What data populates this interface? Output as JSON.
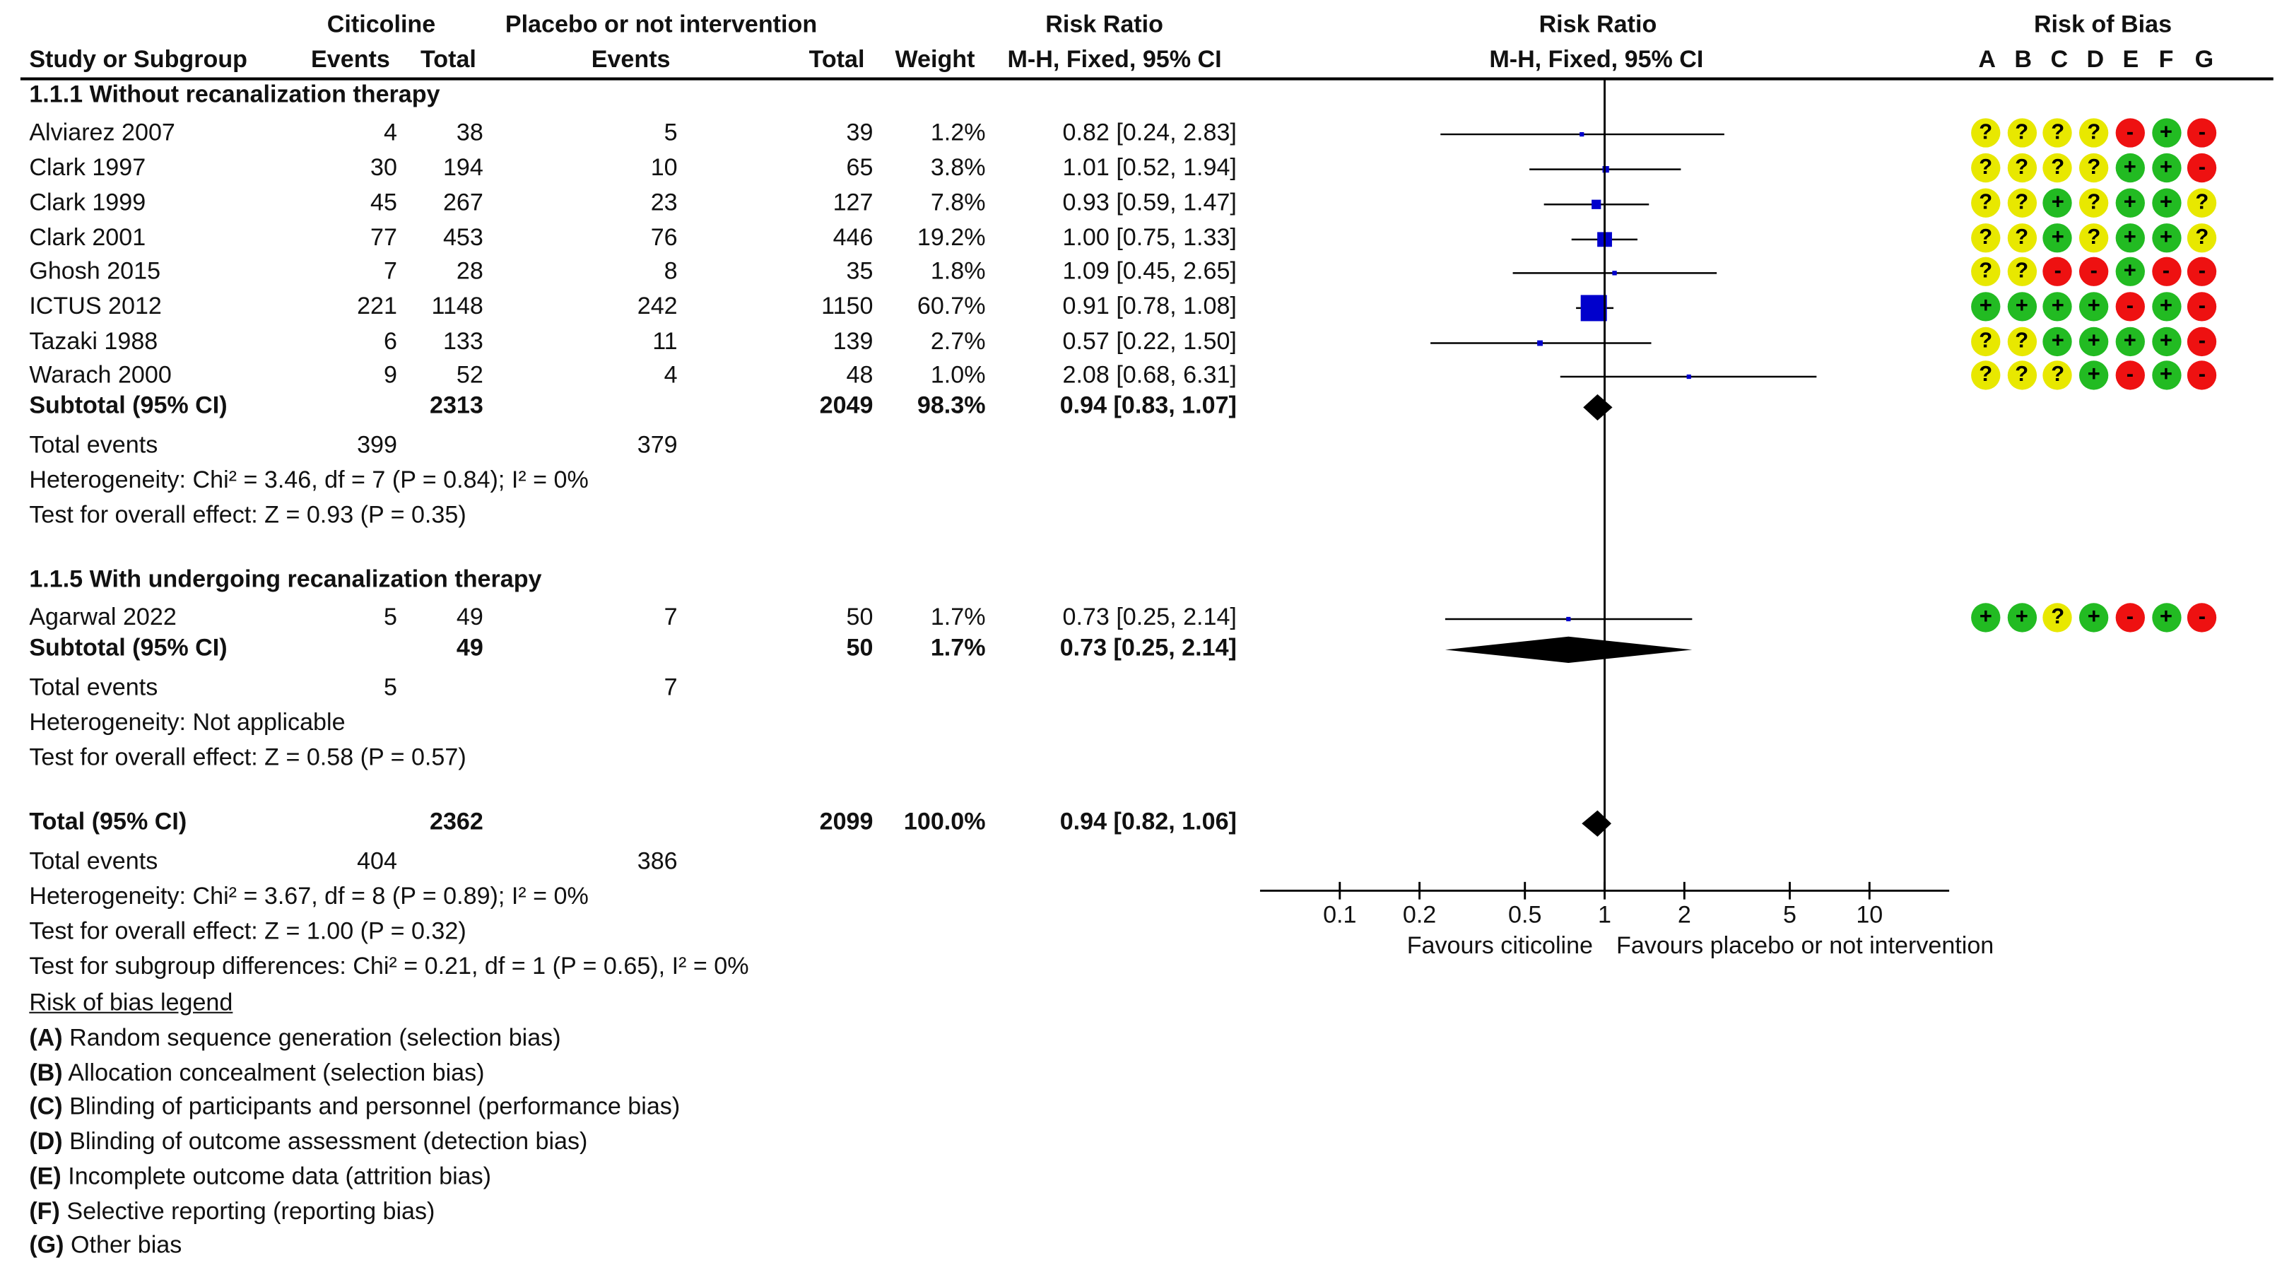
{
  "header": {
    "group1_title": "Citicoline",
    "group2_title": "Placebo or not intervention",
    "col_study": "Study or Subgroup",
    "col_events1": "Events",
    "col_total1": "Total",
    "col_events2": "Events",
    "col_total2": "Total",
    "col_weight": "Weight",
    "rr_title": "Risk Ratio",
    "rr_method": "M-H, Fixed, 95% CI",
    "plot_title": "Risk Ratio",
    "plot_method": "M-H, Fixed, 95% CI",
    "rob_title": "Risk of Bias",
    "rob_letters": [
      "A",
      "B",
      "C",
      "D",
      "E",
      "F",
      "G"
    ]
  },
  "subgroups": [
    {
      "title": "1.1.1 Without recanalization therapy",
      "studies": [
        {
          "name": "Alviarez 2007",
          "e1": "4",
          "t1": "38",
          "e2": "5",
          "t2": "39",
          "weight": "1.2%",
          "rr_text": "0.82 [0.24, 2.83]",
          "rr": 0.82,
          "lo": 0.24,
          "hi": 2.83,
          "w": 1.2,
          "rob": [
            "?",
            "?",
            "?",
            "?",
            "-",
            "+",
            "-"
          ]
        },
        {
          "name": "Clark 1997",
          "e1": "30",
          "t1": "194",
          "e2": "10",
          "t2": "65",
          "weight": "3.8%",
          "rr_text": "1.01 [0.52, 1.94]",
          "rr": 1.01,
          "lo": 0.52,
          "hi": 1.94,
          "w": 3.8,
          "rob": [
            "?",
            "?",
            "?",
            "?",
            "+",
            "+",
            "-"
          ]
        },
        {
          "name": "Clark 1999",
          "e1": "45",
          "t1": "267",
          "e2": "23",
          "t2": "127",
          "weight": "7.8%",
          "rr_text": "0.93 [0.59, 1.47]",
          "rr": 0.93,
          "lo": 0.59,
          "hi": 1.47,
          "w": 7.8,
          "rob": [
            "?",
            "?",
            "+",
            "?",
            "+",
            "+",
            "?"
          ]
        },
        {
          "name": "Clark 2001",
          "e1": "77",
          "t1": "453",
          "e2": "76",
          "t2": "446",
          "weight": "19.2%",
          "rr_text": "1.00 [0.75, 1.33]",
          "rr": 1.0,
          "lo": 0.75,
          "hi": 1.33,
          "w": 19.2,
          "rob": [
            "?",
            "?",
            "+",
            "?",
            "+",
            "+",
            "?"
          ]
        },
        {
          "name": "Ghosh 2015",
          "e1": "7",
          "t1": "28",
          "e2": "8",
          "t2": "35",
          "weight": "1.8%",
          "rr_text": "1.09 [0.45, 2.65]",
          "rr": 1.09,
          "lo": 0.45,
          "hi": 2.65,
          "w": 1.8,
          "rob": [
            "?",
            "?",
            "-",
            "-",
            "+",
            "-",
            "-"
          ]
        },
        {
          "name": "ICTUS 2012",
          "e1": "221",
          "t1": "1148",
          "e2": "242",
          "t2": "1150",
          "weight": "60.7%",
          "rr_text": "0.91 [0.78, 1.08]",
          "rr": 0.91,
          "lo": 0.78,
          "hi": 1.08,
          "w": 60.7,
          "rob": [
            "+",
            "+",
            "+",
            "+",
            "-",
            "+",
            "-"
          ]
        },
        {
          "name": "Tazaki 1988",
          "e1": "6",
          "t1": "133",
          "e2": "11",
          "t2": "139",
          "weight": "2.7%",
          "rr_text": "0.57 [0.22, 1.50]",
          "rr": 0.57,
          "lo": 0.22,
          "hi": 1.5,
          "w": 2.7,
          "rob": [
            "?",
            "?",
            "+",
            "+",
            "+",
            "+",
            "-"
          ]
        },
        {
          "name": "Warach 2000",
          "e1": "9",
          "t1": "52",
          "e2": "4",
          "t2": "48",
          "weight": "1.0%",
          "rr_text": "2.08 [0.68, 6.31]",
          "rr": 2.08,
          "lo": 0.68,
          "hi": 6.31,
          "w": 1.0,
          "rob": [
            "?",
            "?",
            "?",
            "+",
            "-",
            "+",
            "-"
          ]
        }
      ],
      "subtotal": {
        "label": "Subtotal (95% CI)",
        "t1": "2313",
        "t2": "2049",
        "weight": "98.3%",
        "rr_text": "0.94 [0.83, 1.07]",
        "rr": 0.94,
        "lo": 0.83,
        "hi": 1.07
      },
      "total_events": {
        "label": "Total events",
        "e1": "399",
        "e2": "379"
      },
      "heterogeneity": "Heterogeneity: Chi² = 3.46, df = 7 (P = 0.84); I² = 0%",
      "overall_effect": "Test for overall effect: Z = 0.93 (P = 0.35)"
    },
    {
      "title": "1.1.5 With undergoing recanalization therapy",
      "studies": [
        {
          "name": "Agarwal 2022",
          "e1": "5",
          "t1": "49",
          "e2": "7",
          "t2": "50",
          "weight": "1.7%",
          "rr_text": "0.73 [0.25, 2.14]",
          "rr": 0.73,
          "lo": 0.25,
          "hi": 2.14,
          "w": 1.7,
          "rob": [
            "+",
            "+",
            "?",
            "+",
            "-",
            "+",
            "-"
          ]
        }
      ],
      "subtotal": {
        "label": "Subtotal (95% CI)",
        "t1": "49",
        "t2": "50",
        "weight": "1.7%",
        "rr_text": "0.73 [0.25, 2.14]",
        "rr": 0.73,
        "lo": 0.25,
        "hi": 2.14
      },
      "total_events": {
        "label": "Total events",
        "e1": "5",
        "e2": "7"
      },
      "heterogeneity": "Heterogeneity: Not applicable",
      "overall_effect": "Test for overall effect: Z = 0.58 (P = 0.57)"
    }
  ],
  "total": {
    "label": "Total (95% CI)",
    "t1": "2362",
    "t2": "2099",
    "weight": "100.0%",
    "rr_text": "0.94 [0.82, 1.06]",
    "rr": 0.94,
    "lo": 0.82,
    "hi": 1.06,
    "total_events": {
      "label": "Total events",
      "e1": "404",
      "e2": "386"
    },
    "heterogeneity": "Heterogeneity: Chi² = 3.67, df = 8 (P = 0.89); I² = 0%",
    "overall_effect": "Test for overall effect: Z = 1.00 (P = 0.32)",
    "subgroup_diff": "Test for subgroup differences: Chi² = 0.21, df = 1 (P = 0.65), I² = 0%"
  },
  "legend": {
    "title": "Risk of bias legend",
    "items": [
      {
        "key": "(A)",
        "text": "Random sequence generation (selection bias)"
      },
      {
        "key": "(B)",
        "text": "Allocation concealment (selection bias)"
      },
      {
        "key": "(C)",
        "text": "Blinding of participants and personnel (performance bias)"
      },
      {
        "key": "(D)",
        "text": "Blinding of outcome assessment (detection bias)"
      },
      {
        "key": "(E)",
        "text": "Incomplete outcome data (attrition bias)"
      },
      {
        "key": "(F)",
        "text": "Selective reporting (reporting bias)"
      },
      {
        "key": "(G)",
        "text": "Other bias"
      }
    ]
  },
  "chart_data": {
    "type": "forest",
    "title": "Risk Ratio",
    "subtitle": "M-H, Fixed, 95% CI",
    "xscale": "log",
    "xlim": [
      0.05,
      20
    ],
    "xticks": [
      0.1,
      0.2,
      0.5,
      1,
      2,
      5,
      10
    ],
    "xtick_labels": [
      "0.1",
      "0.2",
      "0.5",
      "1",
      "2",
      "5",
      "10"
    ],
    "xlabel_left": "Favours citicoline",
    "xlabel_right": "Favours placebo or not intervention",
    "reference_line": 1
  },
  "colors": {
    "square": "#0000cc",
    "rob_low": "#22bb22",
    "rob_unclear": "#e8e800",
    "rob_high": "#ee1111"
  }
}
